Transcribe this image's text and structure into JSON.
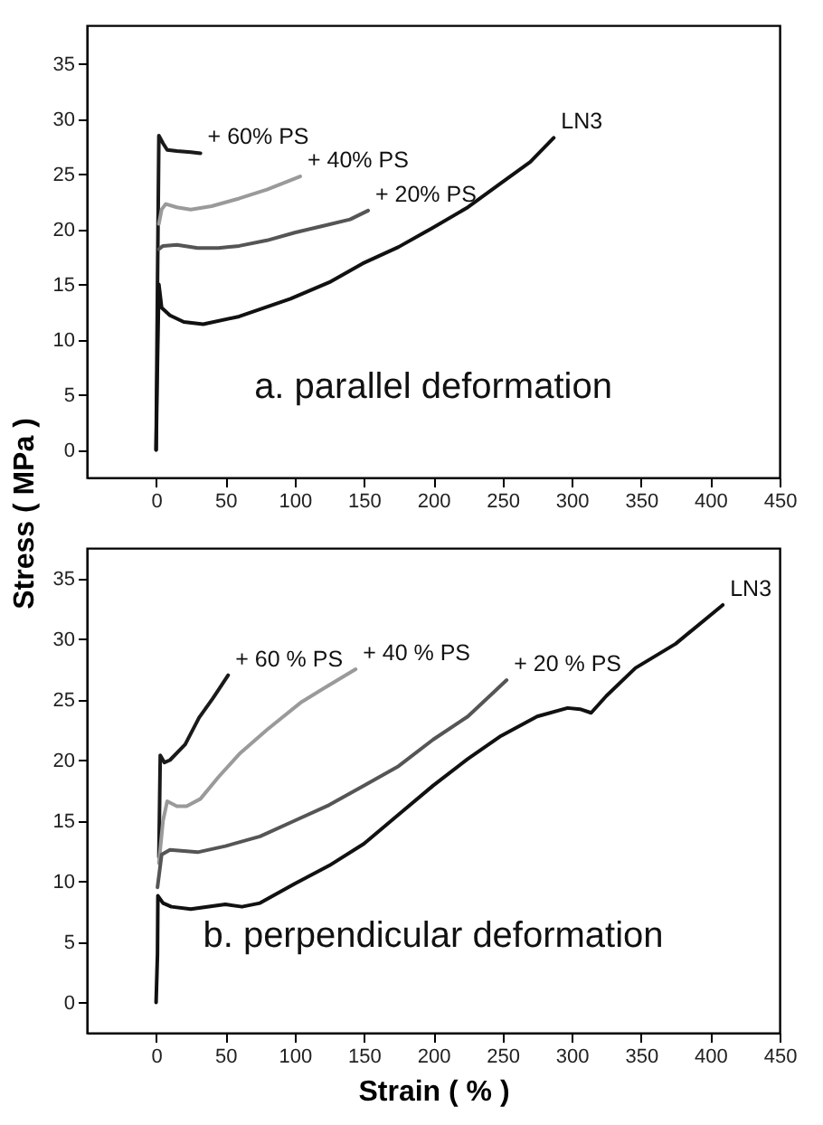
{
  "chart_data": [
    {
      "type": "line",
      "title": "a. parallel deformation",
      "xlim": [
        -50,
        450
      ],
      "ylim": [
        -2.5,
        38.5
      ],
      "xticks": [
        0,
        50,
        100,
        150,
        200,
        250,
        300,
        350,
        400,
        450
      ],
      "yticks": [
        0,
        5,
        10,
        15,
        20,
        25,
        30,
        35
      ],
      "grid": false,
      "legend": false,
      "series": [
        {
          "name": "+ 60% PS",
          "color": "#1a1a1a",
          "x": [
            0,
            1,
            2,
            5,
            8,
            15,
            25,
            32
          ],
          "values": [
            0,
            15,
            28.5,
            27.8,
            27.2,
            27.1,
            27,
            26.9
          ]
        },
        {
          "name": "+ 40% PS",
          "color": "#9a9a9a",
          "x": [
            2,
            4,
            7,
            15,
            25,
            40,
            60,
            80,
            104
          ],
          "values": [
            20.5,
            21.8,
            22.3,
            22,
            21.8,
            22.1,
            22.8,
            23.6,
            24.8
          ]
        },
        {
          "name": "+ 20% PS",
          "color": "#555555",
          "x": [
            2,
            5,
            15,
            30,
            45,
            60,
            80,
            100,
            120,
            140,
            153
          ],
          "values": [
            18.2,
            18.5,
            18.6,
            18.3,
            18.3,
            18.5,
            19,
            19.7,
            20.3,
            20.9,
            21.7
          ]
        },
        {
          "name": "LN3",
          "color": "#111111",
          "x": [
            0,
            1,
            2,
            4,
            10,
            20,
            34,
            60,
            97,
            125,
            149,
            175,
            199,
            225,
            249,
            270,
            287
          ],
          "values": [
            0,
            8,
            15,
            12.9,
            12.2,
            11.6,
            11.4,
            12.1,
            13.7,
            15.2,
            16.9,
            18.4,
            20.1,
            22,
            24.2,
            26.1,
            28.3
          ]
        }
      ]
    },
    {
      "type": "line",
      "title": "b. perpendicular deformation",
      "xlabel": "Strain ( % )",
      "ylabel": "Stress ( MPa )",
      "xlim": [
        -50,
        450
      ],
      "ylim": [
        -2.5,
        37.5
      ],
      "xticks": [
        0,
        50,
        100,
        150,
        200,
        250,
        300,
        350,
        400,
        450
      ],
      "yticks": [
        0,
        5,
        10,
        15,
        20,
        25,
        30,
        35
      ],
      "grid": false,
      "legend": false,
      "series": [
        {
          "name": "+ 60 % PS",
          "color": "#1a1a1a",
          "x": [
            2,
            3,
            6,
            10,
            21,
            31,
            41,
            52
          ],
          "values": [
            12,
            20.4,
            19.8,
            20,
            21.3,
            23.5,
            25.1,
            27
          ]
        },
        {
          "name": "+ 40 % PS",
          "color": "#9a9a9a",
          "x": [
            2,
            5,
            8,
            15,
            22,
            32,
            45,
            60,
            80,
            105,
            125,
            144
          ],
          "values": [
            11.5,
            15,
            16.6,
            16.2,
            16.2,
            16.8,
            18.6,
            20.5,
            22.5,
            24.8,
            26.2,
            27.5
          ]
        },
        {
          "name": "+ 20 % PS",
          "color": "#555555",
          "x": [
            1,
            4,
            10,
            30,
            50,
            75,
            100,
            125,
            150,
            175,
            200,
            225,
            253
          ],
          "values": [
            9.5,
            12.2,
            12.6,
            12.4,
            12.9,
            13.7,
            15,
            16.3,
            17.9,
            19.5,
            21.7,
            23.6,
            26.6
          ]
        },
        {
          "name": "LN3",
          "color": "#111111",
          "x": [
            0,
            1,
            1.3,
            5,
            11,
            25,
            50,
            62,
            75,
            100,
            125,
            150,
            175,
            200,
            225,
            249,
            275,
            297,
            306,
            314,
            325,
            346,
            375,
            409
          ],
          "values": [
            0,
            4,
            8.8,
            8.2,
            7.9,
            7.7,
            8.1,
            7.9,
            8.2,
            9.8,
            11.3,
            13.1,
            15.5,
            17.9,
            20.1,
            22,
            23.6,
            24.3,
            24.2,
            23.9,
            25.3,
            27.6,
            29.6,
            32.8
          ]
        }
      ]
    }
  ]
}
